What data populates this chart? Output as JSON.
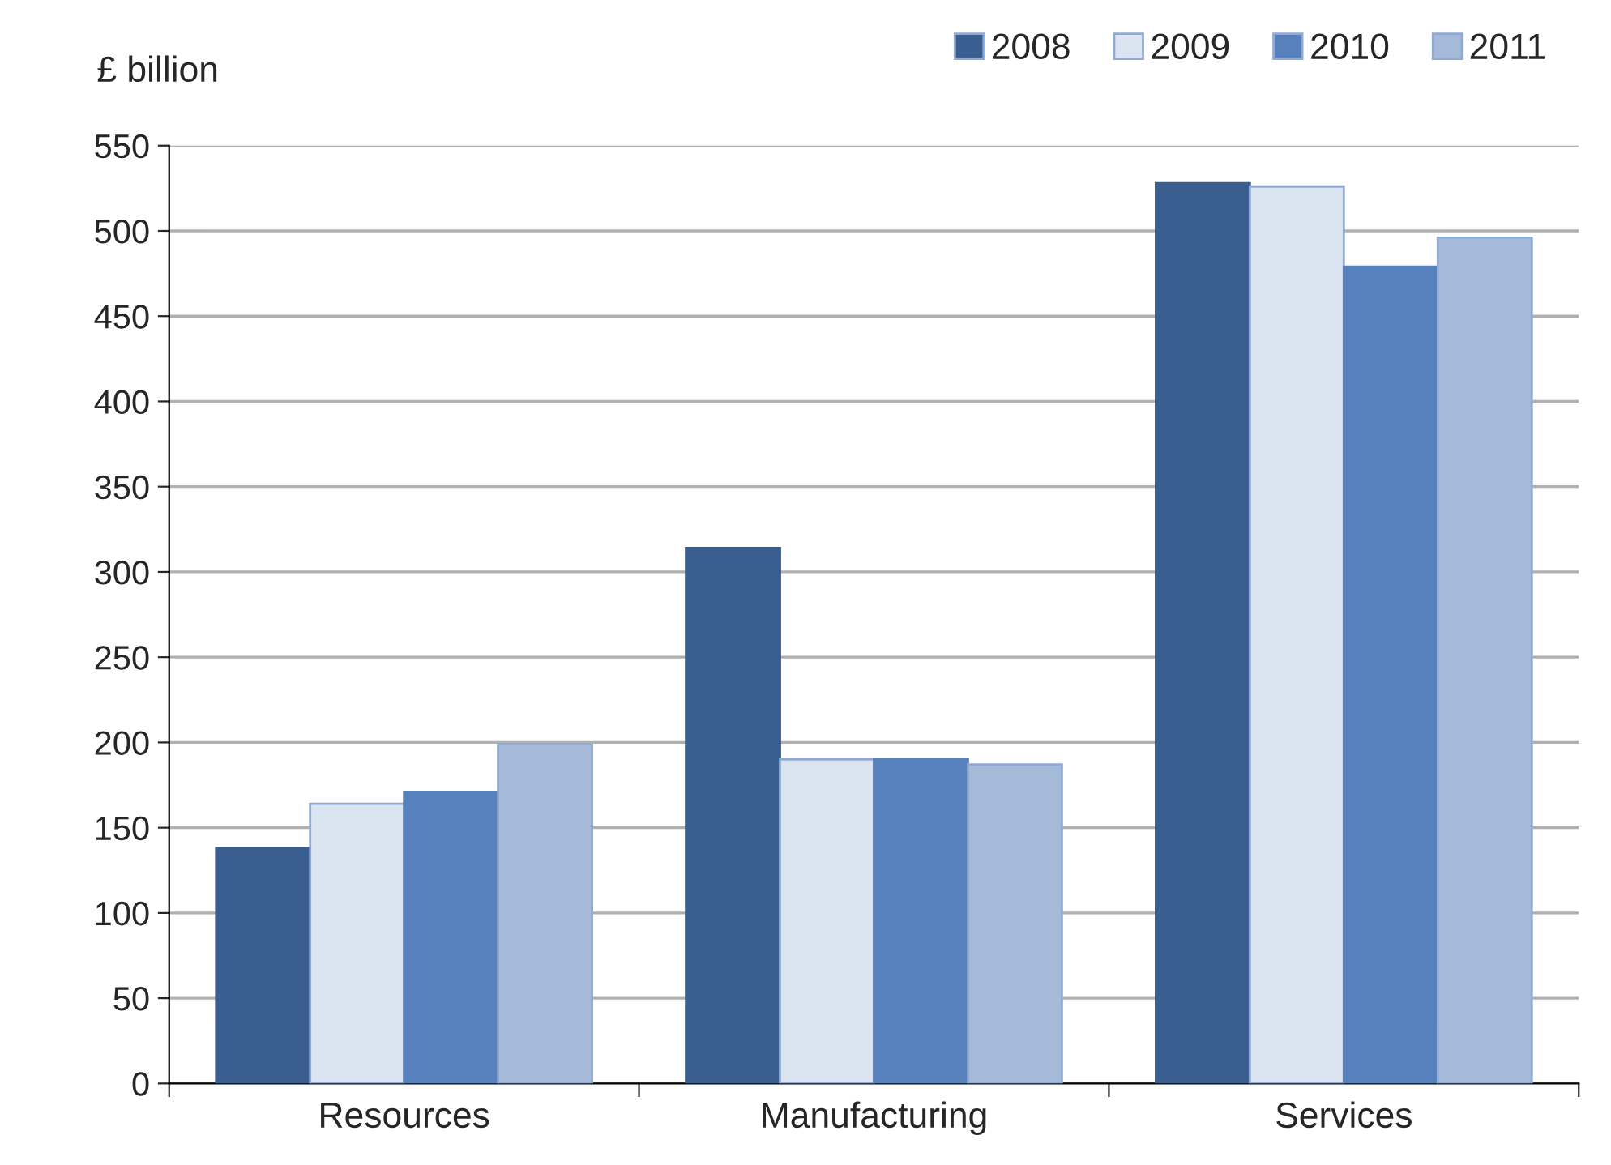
{
  "chart_data": {
    "type": "bar",
    "ylabel": "£ billion",
    "categories": [
      "Resources",
      "Manufacturing",
      "Services"
    ],
    "series": [
      {
        "name": "2008",
        "color": "#3b5e91",
        "values": [
          138,
          314,
          528
        ]
      },
      {
        "name": "2009",
        "color": "#dbe4f1",
        "values": [
          164,
          190,
          526
        ]
      },
      {
        "name": "2010",
        "color": "#5681bd",
        "values": [
          171,
          190,
          479
        ]
      },
      {
        "name": "2011",
        "color": "#a5bad9",
        "values": [
          199,
          187,
          496
        ]
      }
    ],
    "ylim": [
      0,
      550
    ],
    "yticks": [
      0,
      50,
      100,
      150,
      200,
      250,
      300,
      350,
      400,
      450,
      500,
      550
    ],
    "grid": "y",
    "legend": "top right"
  }
}
